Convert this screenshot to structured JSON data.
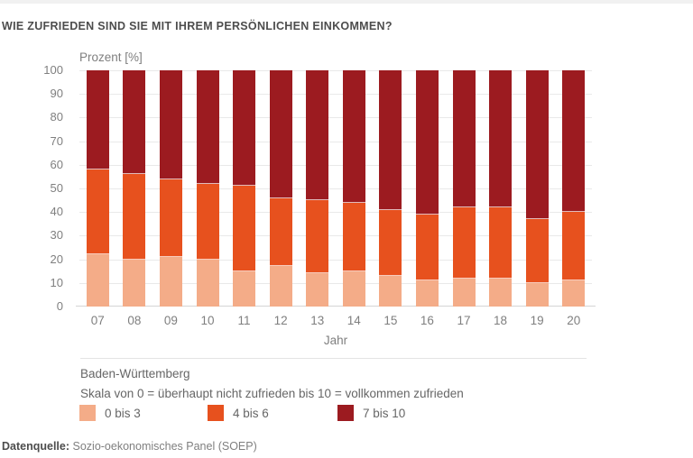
{
  "page": {
    "title": "WIE ZUFRIEDEN SIND SIE MIT IHREM PERSÖNLICHEN EINKOMMEN?",
    "footer_label": "Datenquelle:",
    "footer_text": "Sozio-oekonomisches Panel (SOEP)"
  },
  "chart_data": {
    "type": "bar",
    "stacked": true,
    "title": "WIE ZUFRIEDEN SIND SIE MIT IHREM PERSÖNLICHEN EINKOMMEN?",
    "unit_label": "Prozent [%]",
    "xlabel": "Jahr",
    "ylim": [
      0,
      100
    ],
    "yticks": [
      0,
      10,
      20,
      30,
      40,
      50,
      60,
      70,
      80,
      90,
      100
    ],
    "grid": true,
    "legend_position": "bottom",
    "categories": [
      "07",
      "08",
      "09",
      "10",
      "11",
      "12",
      "13",
      "14",
      "15",
      "16",
      "17",
      "18",
      "19",
      "20"
    ],
    "series": [
      {
        "name": "0 bis 3",
        "color": "#F4AC88",
        "values": [
          22,
          20,
          21,
          20,
          15,
          17,
          14,
          15,
          13,
          11,
          12,
          12,
          10,
          11
        ]
      },
      {
        "name": "4 bis 6",
        "color": "#E7511E",
        "values": [
          36,
          36,
          33,
          32,
          36,
          29,
          31,
          29,
          28,
          28,
          30,
          30,
          27,
          29
        ]
      },
      {
        "name": "7 bis 10",
        "color": "#9C1B20",
        "values": [
          42,
          44,
          46,
          48,
          49,
          54,
          55,
          56,
          59,
          61,
          58,
          58,
          63,
          60
        ]
      }
    ],
    "notes": [
      "Baden-Württemberg",
      "Skala von 0 = überhaupt nicht zufrieden bis 10 = vollkommen zufrieden"
    ]
  },
  "colors": {
    "title_text": "#4d4d4d",
    "axis_text": "#7f7f7f",
    "note_text": "#666666",
    "gridline": "#e9e9e9",
    "baseline": "#d5d5d5",
    "segment_light": "#F4AC88",
    "segment_orange": "#E7511E",
    "segment_darkred": "#9C1B20"
  }
}
